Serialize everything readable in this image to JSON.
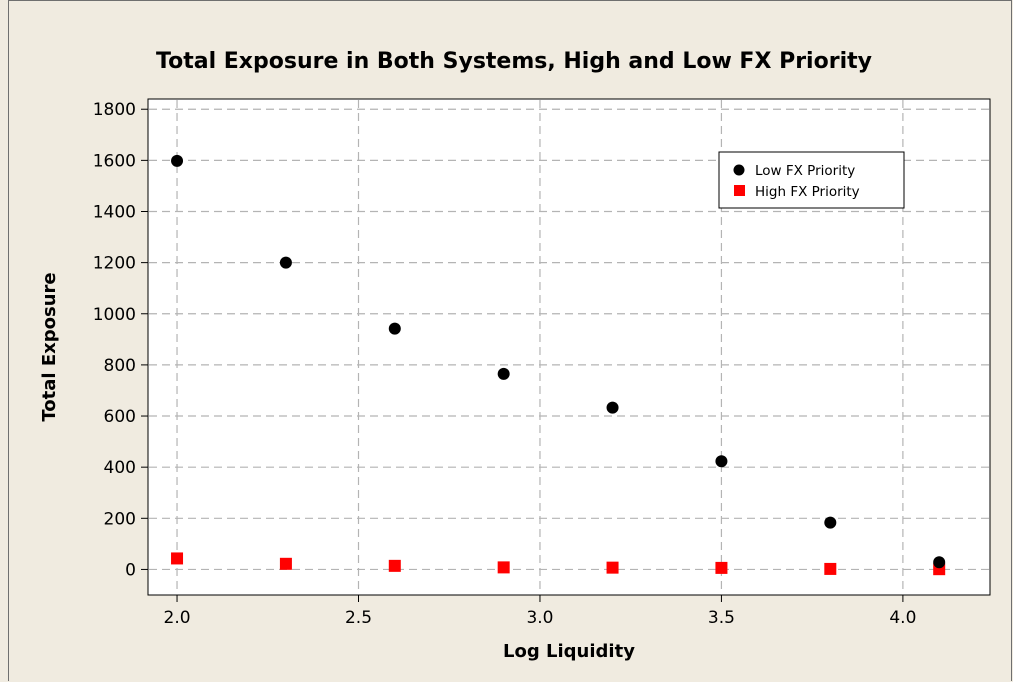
{
  "chart_data": {
    "type": "scatter",
    "title": "Total Exposure in Both Systems, High and Low FX Priority",
    "xlabel": "Log Liquidity",
    "ylabel": "Total Exposure",
    "xlim": [
      1.92,
      4.24
    ],
    "ylim": [
      -100,
      1840
    ],
    "xticks": [
      2.0,
      2.5,
      3.0,
      3.5,
      4.0
    ],
    "xtick_labels": [
      "2.0",
      "2.5",
      "3.0",
      "3.5",
      "4.0"
    ],
    "yticks": [
      0,
      200,
      400,
      600,
      800,
      1000,
      1200,
      1400,
      1600,
      1800
    ],
    "ytick_labels": [
      "0",
      "200",
      "400",
      "600",
      "800",
      "1000",
      "1200",
      "1400",
      "1600",
      "1800"
    ],
    "grid": true,
    "legend_position": "top-right",
    "series": [
      {
        "name": "Low FX Priority",
        "marker": "circle",
        "color": "#000000",
        "x": [
          2.0,
          2.3,
          2.6,
          2.9,
          3.2,
          3.5,
          3.8,
          4.1
        ],
        "y": [
          1598,
          1200,
          942,
          765,
          633,
          423,
          183,
          28
        ]
      },
      {
        "name": "High FX Priority",
        "marker": "square",
        "color": "#ff0000",
        "x": [
          2.0,
          2.3,
          2.6,
          2.9,
          3.2,
          3.5,
          3.8,
          4.1
        ],
        "y": [
          43,
          22,
          14,
          8,
          7,
          6,
          2,
          1
        ]
      }
    ]
  }
}
